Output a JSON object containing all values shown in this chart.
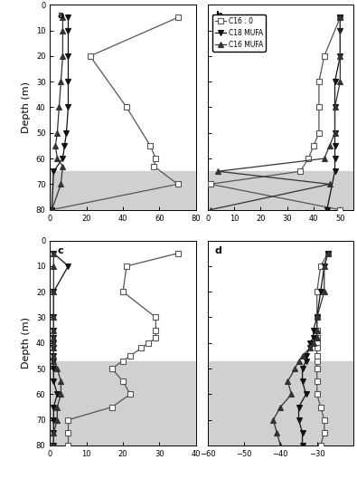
{
  "panel_a": {
    "label": "a",
    "shade_start": 65,
    "x_C16_0": [
      70,
      22,
      42,
      55,
      58,
      57,
      70,
      1
    ],
    "y_C16_0": [
      5,
      20,
      40,
      55,
      60,
      63,
      70,
      80
    ],
    "x_C18_MUFA": [
      10,
      10,
      10,
      10,
      10,
      9,
      8,
      7,
      2,
      1
    ],
    "y_C18_MUFA": [
      5,
      10,
      20,
      30,
      40,
      50,
      55,
      60,
      65,
      80
    ],
    "x_C16_MUFA": [
      7,
      7,
      7,
      6,
      5,
      4,
      3,
      4,
      7,
      6,
      1
    ],
    "y_C16_MUFA": [
      5,
      10,
      20,
      30,
      40,
      50,
      55,
      60,
      63,
      70,
      80
    ],
    "xlim": [
      0,
      80
    ],
    "xticks": [
      0,
      20,
      40,
      60,
      80
    ]
  },
  "panel_b": {
    "label": "b",
    "shade_start": 65,
    "x_C16_0": [
      50,
      44,
      42,
      42,
      42,
      40,
      38,
      35,
      1,
      50
    ],
    "y_C16_0": [
      5,
      20,
      30,
      40,
      50,
      55,
      60,
      65,
      70,
      80
    ],
    "x_C18_MUFA": [
      50,
      50,
      50,
      48,
      48,
      48,
      48,
      48,
      48,
      45
    ],
    "y_C18_MUFA": [
      5,
      10,
      20,
      30,
      40,
      50,
      55,
      60,
      65,
      80
    ],
    "x_C16_MUFA": [
      50,
      50,
      50,
      48,
      48,
      46,
      44,
      4,
      46,
      1
    ],
    "y_C16_MUFA": [
      5,
      20,
      30,
      40,
      50,
      55,
      60,
      65,
      70,
      80
    ],
    "xlim": [
      0,
      55
    ],
    "xticks": [
      0,
      10,
      20,
      30,
      40,
      50
    ]
  },
  "panel_c": {
    "label": "c",
    "shade_start": 47,
    "x_C16_0": [
      35,
      21,
      20,
      29,
      29,
      29,
      27,
      25,
      22,
      20,
      17,
      20,
      22,
      17,
      5,
      5,
      5
    ],
    "y_C16_0": [
      5,
      10,
      20,
      30,
      35,
      38,
      40,
      42,
      45,
      47,
      50,
      55,
      60,
      65,
      70,
      75,
      80
    ],
    "x_C18_MUFA": [
      1,
      5,
      1,
      1,
      1,
      1,
      1,
      1,
      1,
      1,
      1,
      1,
      2,
      1,
      1,
      1,
      1
    ],
    "y_C18_MUFA": [
      5,
      10,
      20,
      30,
      35,
      38,
      40,
      42,
      45,
      47,
      50,
      55,
      60,
      65,
      70,
      75,
      80
    ],
    "x_C16_MUFA": [
      1,
      1,
      1,
      1,
      1,
      1,
      1,
      1,
      1,
      1,
      2,
      3,
      3,
      2,
      2,
      1,
      1
    ],
    "y_C16_MUFA": [
      5,
      10,
      20,
      30,
      35,
      38,
      40,
      42,
      45,
      47,
      50,
      55,
      60,
      65,
      70,
      75,
      80
    ],
    "xlim": [
      0,
      40
    ],
    "xticks": [
      0,
      10,
      20,
      30,
      40
    ]
  },
  "panel_d": {
    "label": "d",
    "shade_start": 47,
    "x_C16_0": [
      -27,
      -29,
      -30,
      -30,
      -30,
      -30,
      -30,
      -30,
      -30,
      -30,
      -30,
      -30,
      -30,
      -29,
      -28,
      -28,
      -29
    ],
    "y_C16_0": [
      5,
      10,
      20,
      30,
      35,
      38,
      40,
      42,
      45,
      47,
      50,
      55,
      60,
      65,
      70,
      75,
      80
    ],
    "x_C18_MUFA": [
      -27,
      -28,
      -29,
      -30,
      -31,
      -31,
      -32,
      -32,
      -33,
      -33,
      -34,
      -34,
      -33,
      -35,
      -35,
      -34,
      -34
    ],
    "y_C18_MUFA": [
      5,
      10,
      20,
      30,
      35,
      38,
      40,
      42,
      45,
      47,
      50,
      55,
      60,
      65,
      70,
      75,
      80
    ],
    "x_C16_MUFA": [
      -27,
      -28,
      -28,
      -30,
      -30,
      -30,
      -31,
      -32,
      -34,
      -35,
      -36,
      -38,
      -37,
      -40,
      -42,
      -41,
      -40
    ],
    "y_C16_MUFA": [
      5,
      10,
      20,
      30,
      35,
      38,
      40,
      42,
      45,
      47,
      50,
      55,
      60,
      65,
      70,
      75,
      80
    ],
    "xlim": [
      -60,
      -20
    ],
    "xticks": [
      -60,
      -50,
      -40,
      -30
    ]
  },
  "ylim": [
    80,
    0
  ],
  "yticks": [
    0,
    10,
    20,
    30,
    40,
    50,
    60,
    70,
    80
  ],
  "shade_color": "#d0d0d0",
  "color_C16_0": "#555555",
  "color_C18_MUFA": "#111111",
  "color_C16_MUFA": "#333333",
  "marker_C16_0": "s",
  "marker_C18_MUFA": "v",
  "marker_C16_MUFA": "^"
}
